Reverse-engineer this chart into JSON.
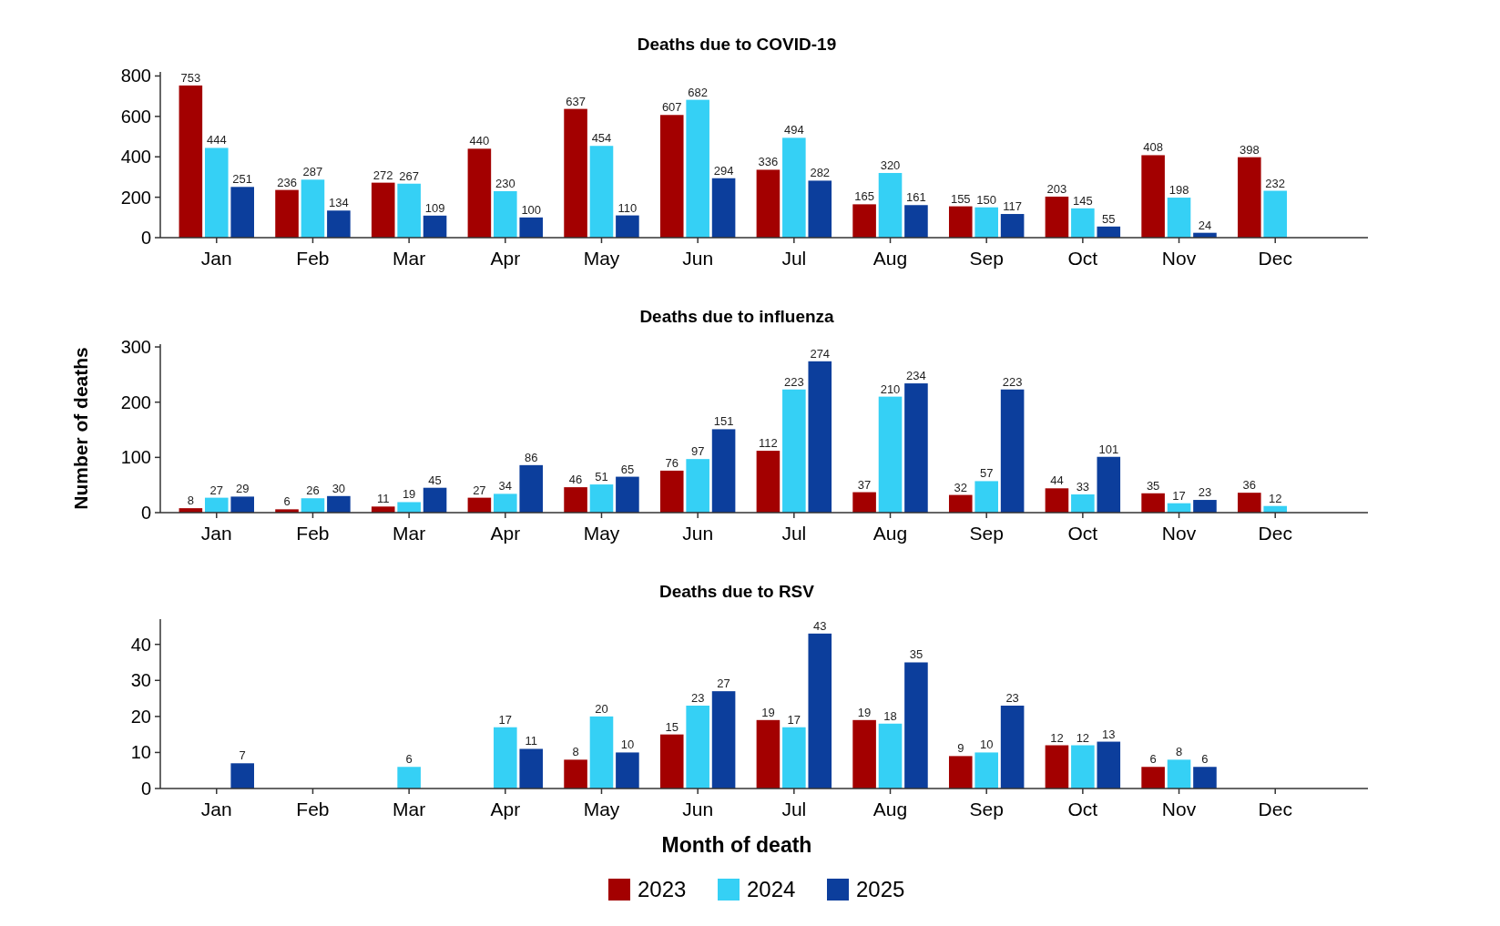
{
  "chart_data": [
    {
      "type": "bar",
      "title": "Deaths due to COVID-19",
      "categories": [
        "Jan",
        "Feb",
        "Mar",
        "Apr",
        "May",
        "Jun",
        "Jul",
        "Aug",
        "Sep",
        "Oct",
        "Nov",
        "Dec"
      ],
      "series": [
        {
          "color": "#a30000",
          "values": [
            753,
            236,
            272,
            440,
            637,
            607,
            336,
            165,
            155,
            203,
            408,
            398
          ]
        },
        {
          "color": "#35d0f5",
          "values": [
            444,
            287,
            267,
            230,
            454,
            682,
            494,
            320,
            150,
            145,
            198,
            232
          ]
        },
        {
          "color": "#0c3e9c",
          "values": [
            251,
            134,
            109,
            100,
            110,
            294,
            282,
            161,
            117,
            55,
            24,
            null
          ]
        }
      ],
      "ylim": [
        0,
        820
      ],
      "yticks": [
        0,
        200,
        400,
        600,
        800
      ],
      "data_labels": true
    },
    {
      "type": "bar",
      "title": "Deaths due to influenza",
      "ylabel": "Number of deaths",
      "categories": [
        "Jan",
        "Feb",
        "Mar",
        "Apr",
        "May",
        "Jun",
        "Jul",
        "Aug",
        "Sep",
        "Oct",
        "Nov",
        "Dec"
      ],
      "series": [
        {
          "color": "#a30000",
          "values": [
            8,
            6,
            11,
            27,
            46,
            76,
            112,
            37,
            32,
            44,
            35,
            36
          ]
        },
        {
          "color": "#35d0f5",
          "values": [
            27,
            26,
            19,
            34,
            51,
            97,
            223,
            210,
            57,
            33,
            17,
            12
          ]
        },
        {
          "color": "#0c3e9c",
          "values": [
            29,
            30,
            45,
            86,
            65,
            151,
            274,
            234,
            223,
            101,
            23,
            null
          ]
        }
      ],
      "ylim": [
        0,
        305
      ],
      "yticks": [
        0,
        100,
        200,
        300
      ],
      "data_labels": true
    },
    {
      "type": "bar",
      "title": "Deaths due to RSV",
      "xlabel": "Month of death",
      "categories": [
        "Jan",
        "Feb",
        "Mar",
        "Apr",
        "May",
        "Jun",
        "Jul",
        "Aug",
        "Sep",
        "Oct",
        "Nov",
        "Dec"
      ],
      "series": [
        {
          "name": "2023",
          "color": "#a30000",
          "values": [
            null,
            null,
            null,
            null,
            8,
            15,
            19,
            19,
            9,
            12,
            6,
            null
          ]
        },
        {
          "name": "2024",
          "color": "#35d0f5",
          "values": [
            null,
            null,
            6,
            17,
            20,
            23,
            17,
            18,
            10,
            12,
            8,
            null
          ]
        },
        {
          "name": "2025",
          "color": "#0c3e9c",
          "values": [
            7,
            null,
            null,
            11,
            10,
            27,
            43,
            35,
            23,
            13,
            6,
            null
          ]
        }
      ],
      "ylim": [
        0,
        47
      ],
      "yticks": [
        0,
        10,
        20,
        30,
        40
      ],
      "data_labels": true,
      "legend": "bottom"
    }
  ]
}
